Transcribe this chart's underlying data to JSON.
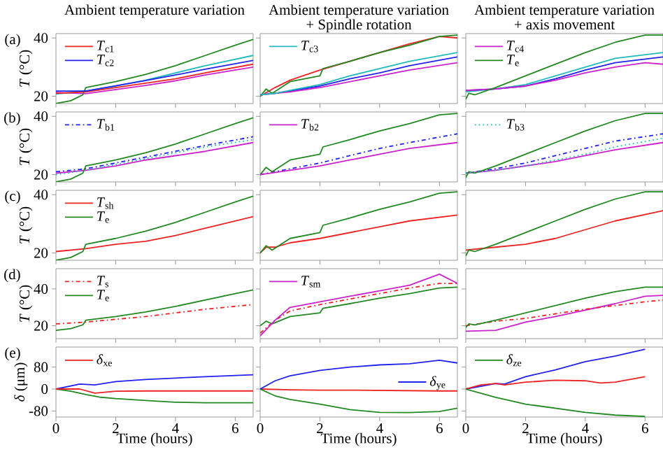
{
  "chart_data": [
    {
      "type": "line",
      "title": "Ambient temperature variation",
      "ylabel": "*T* (°C)",
      "annotations": [
        "(a)"
      ],
      "xlim": [
        0,
        6.6
      ],
      "ylim": [
        17.5,
        41.5
      ],
      "xticks": [
        0,
        2,
        4,
        6
      ],
      "yticks": [
        20,
        40
      ],
      "tick_labels": "y",
      "legend": "top left",
      "series": [
        {
          "name": "*T*$_{c1}$",
          "color": "#ee2222",
          "x": [
            0,
            1,
            2,
            3,
            4,
            5,
            6.6
          ],
          "values": [
            21,
            21.5,
            23,
            24.5,
            26,
            28,
            31
          ]
        },
        {
          "name": "*T*$_{c2}$",
          "color": "#2222ee",
          "x": [
            0,
            1,
            2,
            3,
            4,
            5,
            6.6
          ],
          "values": [
            21.8,
            21.8,
            23.6,
            25.4,
            27.3,
            29.3,
            32.3
          ]
        },
        {
          "color": "#22bbbb",
          "x": [
            0,
            1,
            2,
            3,
            4,
            5,
            6.6
          ],
          "values": [
            20.8,
            21.8,
            23.5,
            25.5,
            28,
            30.5,
            34
          ]
        },
        {
          "color": "#cc22cc",
          "x": [
            0,
            1,
            2,
            3,
            4,
            5,
            6.6
          ],
          "values": [
            21.3,
            20.9,
            22.3,
            23.7,
            25.3,
            27.3,
            30
          ]
        },
        {
          "color": "#228822",
          "x": [
            0,
            0.5,
            0.9,
            1.0,
            2,
            3,
            4,
            5,
            6,
            6.6
          ],
          "values": [
            17.5,
            18.5,
            20.5,
            23,
            25,
            27.5,
            30.5,
            34,
            37.5,
            39.5
          ]
        }
      ]
    },
    {
      "type": "line",
      "title": "Ambient temperature variation",
      "subtitle": "+ Spindle rotation",
      "xlim": [
        0,
        6.6
      ],
      "ylim": [
        17.5,
        41.5
      ],
      "xticks": [
        0,
        2,
        4,
        6
      ],
      "yticks": [
        20,
        40
      ],
      "tick_labels": false,
      "legend": "top left",
      "series": [
        {
          "name": "*T*$_{c3}$",
          "color": "#22bbbb",
          "x": [
            0,
            0.5,
            1,
            2,
            3,
            4,
            5,
            6.6
          ],
          "values": [
            20.5,
            21,
            22,
            24,
            27,
            29.5,
            32,
            35
          ]
        },
        {
          "color": "#ee2222",
          "x": [
            0,
            0.5,
            1,
            2,
            3,
            4,
            5,
            6,
            6.6
          ],
          "values": [
            20,
            23,
            25.5,
            29,
            32,
            35,
            38,
            40.5,
            40
          ]
        },
        {
          "color": "#2222ee",
          "x": [
            0,
            0.5,
            1,
            2,
            3,
            4,
            5,
            6.6
          ],
          "values": [
            20.5,
            21,
            21.8,
            23.5,
            26,
            28,
            30.5,
            33.5
          ]
        },
        {
          "color": "#cc22cc",
          "x": [
            0,
            0.5,
            1,
            2,
            3,
            4,
            5,
            6.6
          ],
          "values": [
            20.5,
            21,
            21.5,
            23,
            25,
            27,
            29,
            31.5
          ]
        },
        {
          "color": "#228822",
          "x": [
            0,
            0.2,
            0.4,
            1,
            2,
            2.1,
            3,
            4,
            5,
            6,
            6.6
          ],
          "values": [
            20,
            22.5,
            21,
            25,
            27,
            29.5,
            32,
            35,
            37.5,
            40.5,
            41
          ]
        }
      ]
    },
    {
      "type": "line",
      "title": "Ambient temperature variation",
      "subtitle": "+ axis movement",
      "xlim": [
        0,
        6.6
      ],
      "ylim": [
        17.5,
        41.5
      ],
      "xticks": [
        0,
        2,
        4,
        6
      ],
      "yticks": [
        20,
        40
      ],
      "tick_labels": false,
      "legend": "top left",
      "series": [
        {
          "name": "*T*$_{c4}$",
          "color": "#cc22cc",
          "x": [
            0,
            1,
            2,
            3,
            4,
            5,
            6,
            6.6
          ],
          "values": [
            22,
            22.5,
            23.5,
            25.5,
            28,
            30,
            31.5,
            31
          ]
        },
        {
          "name": "*T*$_{e}$",
          "color": "#228822",
          "x": [
            0,
            0.1,
            0.3,
            1,
            2,
            3,
            4,
            5,
            6,
            6.6
          ],
          "values": [
            19,
            21,
            20.5,
            23,
            27,
            31,
            35,
            38.5,
            41,
            41
          ]
        },
        {
          "color": "#22bbbb",
          "x": [
            0,
            1,
            2,
            3,
            4,
            5,
            6.6
          ],
          "values": [
            21.5,
            22.5,
            24,
            27,
            30,
            33,
            35
          ]
        },
        {
          "color": "#2222ee",
          "x": [
            0,
            1,
            2,
            3,
            4,
            5,
            6.6
          ],
          "values": [
            22,
            22.5,
            23.5,
            26,
            29,
            31.5,
            33.5
          ]
        }
      ]
    },
    {
      "type": "line",
      "ylabel": "*T* (°C)",
      "annotations": [
        "(b)"
      ],
      "xlim": [
        0,
        6.6
      ],
      "ylim": [
        17.5,
        41.5
      ],
      "xticks": [
        0,
        2,
        4,
        6
      ],
      "yticks": [
        20,
        40
      ],
      "tick_labels": "y",
      "legend": "top left",
      "series": [
        {
          "name": "*T*$_{b1}$",
          "color": "#2222ee",
          "line_style": "dashdot",
          "x": [
            0,
            1,
            2,
            3,
            4,
            5,
            6.6
          ],
          "values": [
            21,
            22,
            24,
            26,
            28,
            30,
            33
          ]
        },
        {
          "color": "#cc22cc",
          "x": [
            0,
            1,
            2,
            3,
            4,
            5,
            6.6
          ],
          "values": [
            20.5,
            21.5,
            23,
            25,
            26.5,
            28,
            31
          ]
        },
        {
          "color": "#22bbbb",
          "line_style": "dotted",
          "x": [
            0,
            1,
            2,
            3,
            4,
            5,
            6.6
          ],
          "values": [
            20,
            21.5,
            23.5,
            25.5,
            27.5,
            29.5,
            32
          ]
        },
        {
          "color": "#228822",
          "x": [
            0,
            0.5,
            0.9,
            1.0,
            2,
            3,
            4,
            5,
            6,
            6.6
          ],
          "values": [
            17.5,
            18.5,
            20.5,
            23,
            25,
            27.5,
            30.5,
            34,
            37.5,
            39.5
          ]
        }
      ]
    },
    {
      "type": "line",
      "xlim": [
        0,
        6.6
      ],
      "ylim": [
        17.5,
        41.5
      ],
      "xticks": [
        0,
        2,
        4,
        6
      ],
      "yticks": [
        20,
        40
      ],
      "tick_labels": false,
      "legend": "top left",
      "series": [
        {
          "name": "*T*$_{b2}$",
          "color": "#cc22cc",
          "x": [
            0,
            1,
            2,
            3,
            4,
            5,
            6.6
          ],
          "values": [
            20,
            21.5,
            23,
            25,
            27,
            29,
            31
          ]
        },
        {
          "color": "#2222ee",
          "line_style": "dashdot",
          "x": [
            0,
            1,
            2,
            3,
            4,
            5,
            6.6
          ],
          "values": [
            20,
            22,
            24,
            26.5,
            29,
            31,
            34
          ]
        },
        {
          "color": "#228822",
          "x": [
            0,
            0.2,
            0.4,
            1,
            2,
            2.1,
            3,
            4,
            5,
            6,
            6.6
          ],
          "values": [
            20,
            22.5,
            21,
            25,
            27,
            29.5,
            32,
            35,
            37.5,
            40.5,
            41
          ]
        }
      ]
    },
    {
      "type": "line",
      "xlim": [
        0,
        6.6
      ],
      "ylim": [
        17.5,
        41.5
      ],
      "xticks": [
        0,
        2,
        4,
        6
      ],
      "yticks": [
        20,
        40
      ],
      "tick_labels": false,
      "legend": "top left",
      "series": [
        {
          "name": "*T*$_{b3}$",
          "color": "#22bbbb",
          "line_style": "dotted",
          "x": [
            0,
            1,
            2,
            3,
            4,
            5,
            6.6
          ],
          "values": [
            20.5,
            21.5,
            23,
            25,
            27,
            29.5,
            32.5
          ]
        },
        {
          "color": "#2222ee",
          "line_style": "dashdot",
          "x": [
            0,
            1,
            2,
            3,
            4,
            5,
            6.6
          ],
          "values": [
            20.5,
            22,
            24,
            26.5,
            29,
            31.5,
            34
          ]
        },
        {
          "color": "#cc22cc",
          "x": [
            0,
            1,
            2,
            3,
            4,
            5,
            6.6
          ],
          "values": [
            20.5,
            21.5,
            23,
            24.5,
            26.5,
            28.5,
            31
          ]
        },
        {
          "color": "#228822",
          "x": [
            0,
            0.1,
            0.3,
            1,
            2,
            3,
            4,
            5,
            6,
            6.6
          ],
          "values": [
            19,
            21,
            20.5,
            23,
            27,
            31,
            35,
            38.5,
            41,
            41
          ]
        }
      ]
    },
    {
      "type": "line",
      "ylabel": "*T* (°C)",
      "annotations": [
        "(c)"
      ],
      "xlim": [
        0,
        6.6
      ],
      "ylim": [
        17.5,
        41.5
      ],
      "xticks": [
        0,
        2,
        4,
        6
      ],
      "yticks": [
        20,
        40
      ],
      "tick_labels": "y",
      "legend": "top left",
      "series": [
        {
          "name": "*T*$_{sh}$",
          "color": "#ee2222",
          "x": [
            0,
            1,
            2,
            3,
            4,
            5,
            6.6
          ],
          "values": [
            20.5,
            21.5,
            23,
            24,
            26,
            28.5,
            32.5
          ]
        },
        {
          "name": "*T*$_{e}$",
          "color": "#228822",
          "x": [
            0,
            0.5,
            0.9,
            1.0,
            2,
            3,
            4,
            5,
            6,
            6.6
          ],
          "values": [
            17.5,
            18.5,
            20.5,
            23,
            25,
            27.5,
            30.5,
            34,
            37.5,
            39.5
          ]
        }
      ]
    },
    {
      "type": "line",
      "xlim": [
        0,
        6.6
      ],
      "ylim": [
        17.5,
        41.5
      ],
      "xticks": [
        0,
        2,
        4,
        6
      ],
      "yticks": [
        20,
        40
      ],
      "tick_labels": false,
      "series": [
        {
          "color": "#ee2222",
          "x": [
            0,
            0.2,
            0.5,
            1,
            2,
            3,
            4,
            5,
            6.6
          ],
          "values": [
            20,
            22,
            22,
            23.5,
            25,
            27,
            29,
            31,
            33
          ]
        },
        {
          "color": "#228822",
          "x": [
            0,
            0.2,
            0.4,
            1,
            2,
            2.1,
            3,
            4,
            5,
            6,
            6.6
          ],
          "values": [
            20,
            22.5,
            21,
            25,
            27,
            29.5,
            32,
            35,
            37.5,
            40.5,
            41
          ]
        }
      ]
    },
    {
      "type": "line",
      "xlim": [
        0,
        6.6
      ],
      "ylim": [
        17.5,
        41.5
      ],
      "xticks": [
        0,
        2,
        4,
        6
      ],
      "yticks": [
        20,
        40
      ],
      "tick_labels": false,
      "series": [
        {
          "color": "#ee2222",
          "x": [
            0,
            1,
            2,
            3,
            4,
            5,
            6.6
          ],
          "values": [
            21,
            22,
            23,
            25,
            28,
            31,
            34.5
          ]
        },
        {
          "color": "#228822",
          "x": [
            0,
            0.1,
            0.3,
            1,
            2,
            3,
            4,
            5,
            6,
            6.6
          ],
          "values": [
            19,
            21,
            20.5,
            23,
            27,
            31,
            35,
            38.5,
            41,
            41
          ]
        }
      ]
    },
    {
      "type": "line",
      "ylabel": "*T* (°C)",
      "annotations": [
        "(d)"
      ],
      "xlim": [
        0,
        6.6
      ],
      "ylim": [
        13,
        51
      ],
      "xticks": [
        0,
        2,
        4,
        6
      ],
      "yticks": [
        20,
        40
      ],
      "tick_labels": "y",
      "legend": "top left",
      "series": [
        {
          "name": "*T*$_{s}$",
          "color": "#ee2222",
          "line_style": "dashdot",
          "x": [
            0,
            1,
            2,
            3,
            4,
            5,
            6.6
          ],
          "values": [
            21,
            22,
            23.5,
            25,
            27,
            29,
            31.5
          ]
        },
        {
          "name": "*T*$_{e}$",
          "color": "#228822",
          "x": [
            0,
            0.5,
            0.9,
            1.0,
            2,
            3,
            4,
            5,
            6,
            6.6
          ],
          "values": [
            17.5,
            18.5,
            20.5,
            23,
            25,
            27.5,
            30.5,
            34,
            37.5,
            39.5
          ]
        }
      ]
    },
    {
      "type": "line",
      "xlim": [
        0,
        6.6
      ],
      "ylim": [
        13,
        51
      ],
      "xticks": [
        0,
        2,
        4,
        6
      ],
      "yticks": [
        20,
        40
      ],
      "tick_labels": false,
      "legend": "top left",
      "series": [
        {
          "name": "*T*$_{sm}$",
          "color": "#cc22cc",
          "x": [
            0,
            0.5,
            1,
            2,
            3,
            4,
            5,
            6,
            6.6
          ],
          "values": [
            14.5,
            23,
            30,
            33,
            36,
            39,
            42,
            48,
            43
          ]
        },
        {
          "color": "#ee2222",
          "line_style": "dashdot",
          "x": [
            0,
            0.5,
            1,
            2,
            3,
            4,
            5,
            6,
            6.6
          ],
          "values": [
            16,
            23,
            28,
            31.5,
            34.5,
            37.5,
            40.5,
            43,
            43
          ]
        },
        {
          "color": "#228822",
          "x": [
            0,
            0.2,
            0.4,
            1,
            2,
            2.1,
            3,
            4,
            5,
            6,
            6.6
          ],
          "values": [
            20,
            22.5,
            21,
            25,
            27,
            29.5,
            32,
            35,
            37.5,
            40.5,
            41
          ]
        }
      ]
    },
    {
      "type": "line",
      "xlim": [
        0,
        6.6
      ],
      "ylim": [
        13,
        51
      ],
      "xticks": [
        0,
        2,
        4,
        6
      ],
      "yticks": [
        20,
        40
      ],
      "tick_labels": false,
      "series": [
        {
          "color": "#cc22cc",
          "x": [
            0,
            1,
            2,
            3,
            4,
            5,
            6,
            6.6
          ],
          "values": [
            17,
            17.5,
            22,
            25,
            28.5,
            32,
            36,
            36.5
          ]
        },
        {
          "color": "#ee2222",
          "line_style": "dashdot",
          "x": [
            0,
            1,
            2,
            3,
            4,
            5,
            6,
            6.6
          ],
          "values": [
            20,
            22.5,
            24,
            26.5,
            29,
            31,
            33,
            34
          ]
        },
        {
          "color": "#228822",
          "x": [
            0,
            0.1,
            0.3,
            1,
            2,
            3,
            4,
            5,
            6,
            6.6
          ],
          "values": [
            19,
            21,
            20.5,
            23,
            27,
            31,
            35,
            38.5,
            41,
            41
          ]
        }
      ]
    },
    {
      "type": "line",
      "xlabel": "Time (hours)",
      "ylabel": "*δ* (μm)",
      "annotations": [
        "(e)"
      ],
      "xlim": [
        0,
        6.6
      ],
      "ylim": [
        -102,
        153
      ],
      "xticks": [
        0,
        2,
        4,
        6
      ],
      "yticks": [
        -80,
        0,
        80
      ],
      "legend": "top left",
      "series": [
        {
          "name": "*δ*$_{xe}$",
          "color": "#ee2222",
          "x": [
            0,
            0.8,
            1.3,
            2,
            3,
            6.6
          ],
          "values": [
            0,
            0,
            -15,
            -8,
            -7,
            -7
          ]
        },
        {
          "color": "#2222ee",
          "x": [
            0,
            0.8,
            1.3,
            2,
            3,
            4,
            5,
            6.6
          ],
          "values": [
            0,
            18,
            15,
            27,
            35,
            40,
            45,
            52
          ]
        },
        {
          "color": "#228822",
          "x": [
            0,
            0.5,
            1,
            1.5,
            2,
            3,
            4,
            5,
            6.6
          ],
          "values": [
            0,
            -8,
            -20,
            -30,
            -35,
            -42,
            -48,
            -50,
            -50
          ]
        }
      ]
    },
    {
      "type": "line",
      "xlabel": "Time (hours)",
      "xlim": [
        0,
        6.6
      ],
      "ylim": [
        -102,
        153
      ],
      "xticks": [
        0,
        2,
        4,
        6
      ],
      "yticks": [
        -80,
        0,
        80
      ],
      "tick_labels": "x",
      "legend": "right",
      "series": [
        {
          "name": "*δ*$_{ye}$",
          "color": "#2222ee",
          "x": [
            0,
            0.5,
            1,
            2,
            3,
            4,
            5,
            6,
            6.6
          ],
          "values": [
            0,
            30,
            48,
            68,
            80,
            88,
            92,
            105,
            95
          ]
        },
        {
          "color": "#ee2222",
          "x": [
            0,
            1,
            2,
            3,
            4,
            5,
            6,
            6.6
          ],
          "values": [
            0,
            -3,
            -4,
            -4,
            -5,
            -6,
            -7,
            -7
          ]
        },
        {
          "color": "#228822",
          "x": [
            0,
            0.5,
            1,
            2,
            3,
            4,
            5,
            6,
            6.6
          ],
          "values": [
            0,
            -25,
            -38,
            -55,
            -75,
            -85,
            -86,
            -82,
            -70
          ]
        }
      ]
    },
    {
      "type": "line",
      "xlabel": "Time (hours)",
      "xlim": [
        0,
        6.6
      ],
      "ylim": [
        -102,
        153
      ],
      "xticks": [
        0,
        2,
        4,
        6
      ],
      "yticks": [
        -80,
        0,
        80
      ],
      "tick_labels": "x",
      "legend": "top left",
      "series": [
        {
          "name": "*δ*$_{ze}$",
          "color": "#228822",
          "x": [
            0,
            1,
            2,
            3,
            4,
            5,
            6
          ],
          "values": [
            0,
            -30,
            -55,
            -70,
            -85,
            -95,
            -100
          ]
        },
        {
          "color": "#2222ee",
          "x": [
            0,
            1,
            1.3,
            2,
            3,
            4,
            5,
            6
          ],
          "values": [
            0,
            20,
            18,
            45,
            70,
            100,
            120,
            145
          ]
        },
        {
          "color": "#ee2222",
          "x": [
            0,
            0.5,
            1,
            1.3,
            2,
            3,
            4,
            4.5,
            5,
            6
          ],
          "values": [
            0,
            15,
            20,
            15,
            25,
            32,
            30,
            22,
            25,
            45
          ]
        }
      ]
    }
  ]
}
